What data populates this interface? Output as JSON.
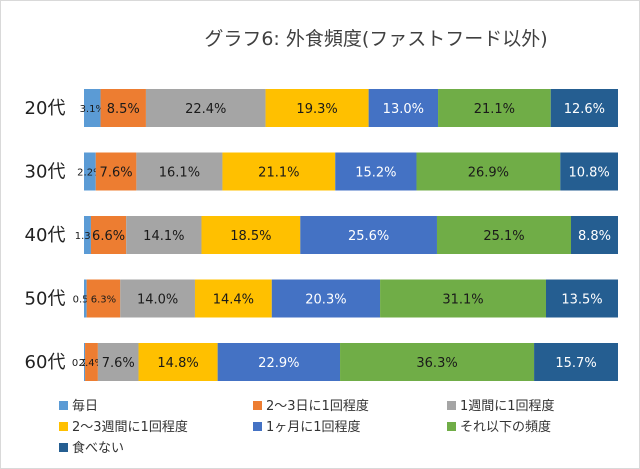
{
  "chart_data": {
    "type": "bar",
    "orientation": "horizontal",
    "stacked": "percent",
    "title": "グラフ6: 外食頻度(ファストフード以外)",
    "categories": [
      "20代",
      "30代",
      "40代",
      "50代",
      "60代"
    ],
    "series": [
      {
        "name": "毎日",
        "color": "#5b9bd5",
        "values": [
          3.1,
          2.2,
          1.3,
          0.5,
          0.2
        ]
      },
      {
        "name": "2〜3日に1回程度",
        "color": "#ed7d31",
        "values": [
          8.5,
          7.6,
          6.6,
          6.3,
          2.4
        ]
      },
      {
        "name": "1週間に1回程度",
        "color": "#a5a5a5",
        "values": [
          22.4,
          16.1,
          14.1,
          14.0,
          7.6
        ]
      },
      {
        "name": "2〜3週間に1回程度",
        "color": "#ffc000",
        "values": [
          19.3,
          21.1,
          18.5,
          14.4,
          14.8
        ]
      },
      {
        "name": "1ヶ月に1回程度",
        "color": "#4472c4",
        "values": [
          13.0,
          15.2,
          25.6,
          20.3,
          22.9
        ]
      },
      {
        "name": "それ以下の頻度",
        "color": "#70ad47",
        "values": [
          21.1,
          26.9,
          25.1,
          31.1,
          36.3
        ]
      },
      {
        "name": "食べない",
        "color": "#255e91",
        "values": [
          12.6,
          10.8,
          8.8,
          13.5,
          15.7
        ]
      }
    ],
    "labels": [
      [
        "3.1%",
        "8.5%",
        "22.4%",
        "19.3%",
        "13.0%",
        "21.1%",
        "12.6%"
      ],
      [
        "2.2%",
        "7.6%",
        "16.1%",
        "21.1%",
        "15.2%",
        "26.9%",
        "10.8%"
      ],
      [
        "1.3%",
        "6.6%",
        "14.1%",
        "18.5%",
        "25.6%",
        "25.1%",
        "8.8%"
      ],
      [
        "0.5%",
        "6.3%",
        "14.0%",
        "14.4%",
        "20.3%",
        "31.1%",
        "13.5%"
      ],
      [
        "0.2%",
        "2.4%",
        "7.6%",
        "14.8%",
        "22.9%",
        "36.3%",
        "15.7%"
      ]
    ],
    "xlim": [
      0,
      100
    ],
    "grid": false,
    "legend_position": "bottom"
  }
}
